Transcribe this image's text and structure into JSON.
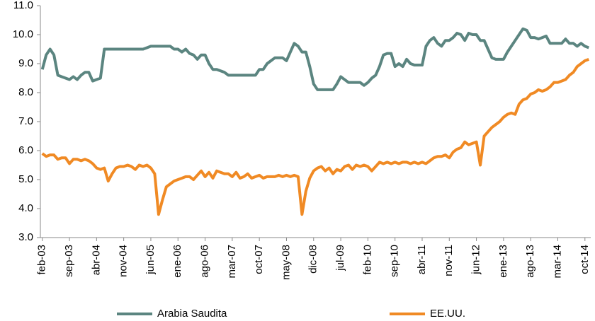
{
  "chart_data": {
    "type": "line",
    "categories": [
      "feb-03",
      null,
      null,
      null,
      null,
      null,
      null,
      "sep-03",
      null,
      null,
      null,
      null,
      null,
      null,
      "abr-04",
      null,
      null,
      null,
      null,
      null,
      null,
      "nov-04",
      null,
      null,
      null,
      null,
      null,
      null,
      "jun-05",
      null,
      null,
      null,
      null,
      null,
      null,
      "ene-06",
      null,
      null,
      null,
      null,
      null,
      null,
      "ago-06",
      null,
      null,
      null,
      null,
      null,
      null,
      "mar-07",
      null,
      null,
      null,
      null,
      null,
      null,
      "oct-07",
      null,
      null,
      null,
      null,
      null,
      null,
      "may-08",
      null,
      null,
      null,
      null,
      null,
      null,
      "dic-08",
      null,
      null,
      null,
      null,
      null,
      null,
      "jul-09",
      null,
      null,
      null,
      null,
      null,
      null,
      "feb-10",
      null,
      null,
      null,
      null,
      null,
      null,
      "sep-10",
      null,
      null,
      null,
      null,
      null,
      null,
      "abr-11",
      null,
      null,
      null,
      null,
      null,
      null,
      "nov-11",
      null,
      null,
      null,
      null,
      null,
      null,
      "jun-12",
      null,
      null,
      null,
      null,
      null,
      null,
      "ene-13",
      null,
      null,
      null,
      null,
      null,
      null,
      "ago-13",
      null,
      null,
      null,
      null,
      null,
      null,
      "mar-14",
      null,
      null,
      null,
      null,
      null,
      null,
      "oct-14",
      null
    ],
    "series": [
      {
        "name": "Arabia Saudita",
        "color": "#5b8580",
        "values": [
          8.8,
          9.3,
          9.5,
          9.3,
          8.6,
          8.55,
          8.5,
          8.45,
          8.55,
          8.45,
          8.6,
          8.7,
          8.7,
          8.4,
          8.45,
          8.5,
          9.5,
          9.5,
          9.5,
          9.5,
          9.5,
          9.5,
          9.5,
          9.5,
          9.5,
          9.5,
          9.5,
          9.55,
          9.6,
          9.6,
          9.6,
          9.6,
          9.6,
          9.6,
          9.5,
          9.5,
          9.4,
          9.5,
          9.35,
          9.3,
          9.15,
          9.3,
          9.3,
          9.0,
          8.8,
          8.8,
          8.75,
          8.7,
          8.6,
          8.6,
          8.6,
          8.6,
          8.6,
          8.6,
          8.6,
          8.6,
          8.8,
          8.8,
          9.0,
          9.1,
          9.2,
          9.2,
          9.2,
          9.1,
          9.4,
          9.7,
          9.6,
          9.4,
          9.4,
          8.9,
          8.3,
          8.1,
          8.1,
          8.1,
          8.1,
          8.1,
          8.3,
          8.55,
          8.45,
          8.35,
          8.35,
          8.35,
          8.35,
          8.25,
          8.35,
          8.5,
          8.6,
          8.9,
          9.3,
          9.35,
          9.35,
          8.9,
          9.0,
          8.9,
          9.15,
          9.0,
          8.95,
          8.95,
          8.95,
          9.6,
          9.8,
          9.9,
          9.7,
          9.6,
          9.8,
          9.8,
          9.9,
          10.05,
          10.0,
          9.8,
          10.05,
          10.0,
          10.0,
          9.8,
          9.8,
          9.5,
          9.2,
          9.15,
          9.15,
          9.15,
          9.4,
          9.6,
          9.8,
          10.0,
          10.2,
          10.15,
          9.9,
          9.9,
          9.85,
          9.9,
          9.95,
          9.7,
          9.7,
          9.7,
          9.7,
          9.85,
          9.7,
          9.7,
          9.6,
          9.7,
          9.6,
          9.55
        ]
      },
      {
        "name": "EE.UU.",
        "color": "#f08a24",
        "values": [
          5.9,
          5.8,
          5.85,
          5.85,
          5.7,
          5.75,
          5.75,
          5.55,
          5.7,
          5.7,
          5.65,
          5.7,
          5.65,
          5.55,
          5.4,
          5.35,
          5.4,
          4.95,
          5.2,
          5.4,
          5.45,
          5.45,
          5.5,
          5.45,
          5.35,
          5.5,
          5.45,
          5.5,
          5.4,
          5.2,
          3.8,
          4.3,
          4.75,
          4.85,
          4.95,
          5.0,
          5.05,
          5.1,
          5.1,
          5.0,
          5.15,
          5.3,
          5.1,
          5.25,
          5.05,
          5.3,
          5.25,
          5.2,
          5.2,
          5.1,
          5.25,
          5.05,
          5.1,
          5.2,
          5.05,
          5.1,
          5.15,
          5.05,
          5.1,
          5.1,
          5.1,
          5.15,
          5.1,
          5.15,
          5.1,
          5.15,
          5.1,
          3.8,
          4.6,
          5.05,
          5.3,
          5.4,
          5.45,
          5.3,
          5.4,
          5.2,
          5.35,
          5.3,
          5.45,
          5.5,
          5.35,
          5.5,
          5.45,
          5.5,
          5.45,
          5.3,
          5.45,
          5.6,
          5.55,
          5.6,
          5.55,
          5.6,
          5.55,
          5.6,
          5.6,
          5.55,
          5.6,
          5.55,
          5.6,
          5.55,
          5.65,
          5.75,
          5.8,
          5.8,
          5.85,
          5.75,
          5.95,
          6.05,
          6.1,
          6.3,
          6.2,
          6.25,
          6.3,
          5.5,
          6.5,
          6.65,
          6.8,
          6.9,
          7.0,
          7.15,
          7.25,
          7.3,
          7.25,
          7.6,
          7.75,
          7.8,
          7.95,
          8.0,
          8.1,
          8.05,
          8.1,
          8.2,
          8.35,
          8.35,
          8.4,
          8.45,
          8.6,
          8.7,
          8.9,
          9.0,
          9.1,
          9.15
        ]
      }
    ],
    "ylim": [
      3,
      11
    ],
    "yticks": [
      {
        "value": 3,
        "label": "3.0"
      },
      {
        "value": 4,
        "label": "4.0"
      },
      {
        "value": 5,
        "label": "5.0"
      },
      {
        "value": 6,
        "label": "6.0"
      },
      {
        "value": 7,
        "label": "7.0"
      },
      {
        "value": 8,
        "label": "8.0"
      },
      {
        "value": 9,
        "label": "9.0"
      },
      {
        "value": 10,
        "label": "10.0"
      },
      {
        "value": 11,
        "label": "11.0"
      }
    ],
    "grid": false,
    "legend": "bottom"
  }
}
